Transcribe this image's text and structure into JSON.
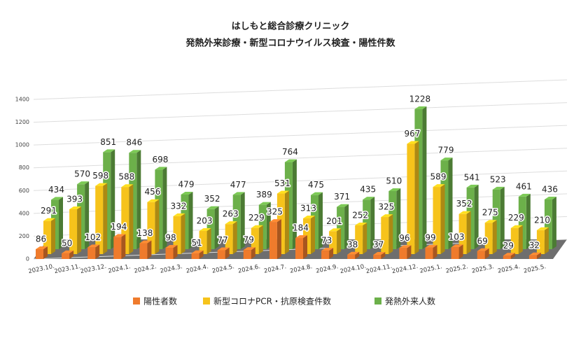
{
  "chart_data": {
    "type": "bar3d",
    "title": "はしもと総合診療クリニック",
    "subtitle": "発熱外来診療・新型コロナウイルス検査・陽性件数",
    "categories": [
      "2023.10.",
      "2023.11.",
      "2023.12.",
      "2024.1.",
      "2024.2.",
      "2024.3.",
      "2024.4.",
      "2024.5.",
      "2024.6.",
      "2024.7.",
      "2024.8.",
      "2024.9.",
      "2024.10.",
      "2024.11.",
      "2024.12.",
      "2025.1.",
      "2025.2.",
      "2025.3.",
      "2025.4.",
      "2025.5."
    ],
    "series": [
      {
        "name": "陽性者数",
        "color": "#ef7b2c",
        "values": [
          86,
          50,
          102,
          194,
          138,
          98,
          51,
          77,
          79,
          325,
          184,
          73,
          38,
          37,
          96,
          99,
          103,
          69,
          29,
          32
        ]
      },
      {
        "name": "新型コロナPCR・抗原検査件数",
        "color": "#f6c31b",
        "values": [
          291,
          393,
          598,
          588,
          456,
          332,
          203,
          263,
          229,
          531,
          313,
          201,
          252,
          325,
          967,
          589,
          352,
          275,
          229,
          210
        ]
      },
      {
        "name": "発熱外来人数",
        "color": "#6cb04a",
        "values": [
          434,
          570,
          851,
          846,
          698,
          479,
          352,
          477,
          389,
          764,
          475,
          371,
          435,
          510,
          1228,
          779,
          541,
          523,
          461,
          436
        ]
      }
    ],
    "ylim": [
      0,
      1400
    ],
    "yticks": [
      0,
      200,
      400,
      600,
      800,
      1000,
      1200,
      1400
    ],
    "grid": true,
    "legend": "bottom"
  }
}
